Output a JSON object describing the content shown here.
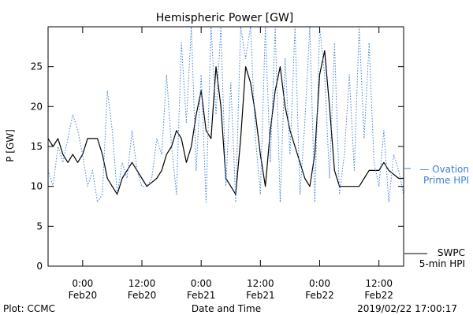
{
  "chart_data": {
    "type": "line",
    "title": "Hemispheric Power [GW]",
    "xlabel": "Date and Time",
    "ylabel": "P [GW]",
    "ylim": [
      0,
      30
    ],
    "yticks": [
      0,
      5,
      10,
      15,
      20,
      25
    ],
    "xlim": [
      "2019-02-19T17:00",
      "2019-02-22T17:00"
    ],
    "xticks": [
      {
        "time": "2019-02-20T00:00",
        "line1": "0:00",
        "line2": "Feb20"
      },
      {
        "time": "2019-02-20T12:00",
        "line1": "12:00",
        "line2": "Feb20"
      },
      {
        "time": "2019-02-21T00:00",
        "line1": "0:00",
        "line2": "Feb21"
      },
      {
        "time": "2019-02-21T12:00",
        "line1": "12:00",
        "line2": "Feb21"
      },
      {
        "time": "2019-02-22T00:00",
        "line1": "0:00",
        "line2": "Feb22"
      },
      {
        "time": "2019-02-22T12:00",
        "line1": "12:00",
        "line2": "Feb22"
      }
    ],
    "grid": false,
    "legend_position": "right",
    "footer": {
      "left": "Plot: CCMC",
      "right": "2019/02/22 17:00:17"
    },
    "series": [
      {
        "name": "SWPC 5-min HPI",
        "legend_lines": [
          "SWPC",
          "5-min HPI"
        ],
        "color": "#000000",
        "style": "solid",
        "points": [
          [
            "2019-02-19T17:00",
            16
          ],
          [
            "2019-02-19T18:00",
            15
          ],
          [
            "2019-02-19T19:00",
            16
          ],
          [
            "2019-02-19T20:00",
            14
          ],
          [
            "2019-02-19T21:00",
            13
          ],
          [
            "2019-02-19T22:00",
            14
          ],
          [
            "2019-02-19T23:00",
            13
          ],
          [
            "2019-02-20T00:00",
            14
          ],
          [
            "2019-02-20T01:00",
            16
          ],
          [
            "2019-02-20T03:00",
            16
          ],
          [
            "2019-02-20T04:00",
            14
          ],
          [
            "2019-02-20T05:00",
            11
          ],
          [
            "2019-02-20T06:00",
            10
          ],
          [
            "2019-02-20T07:00",
            9
          ],
          [
            "2019-02-20T08:00",
            11
          ],
          [
            "2019-02-20T09:00",
            12
          ],
          [
            "2019-02-20T10:00",
            13
          ],
          [
            "2019-02-20T11:00",
            12
          ],
          [
            "2019-02-20T12:00",
            11
          ],
          [
            "2019-02-20T13:00",
            10
          ],
          [
            "2019-02-20T15:00",
            11
          ],
          [
            "2019-02-20T16:00",
            12
          ],
          [
            "2019-02-20T17:00",
            14
          ],
          [
            "2019-02-20T18:00",
            15
          ],
          [
            "2019-02-20T19:00",
            17
          ],
          [
            "2019-02-20T20:00",
            16
          ],
          [
            "2019-02-20T21:00",
            13
          ],
          [
            "2019-02-20T22:00",
            15
          ],
          [
            "2019-02-20T23:00",
            19
          ],
          [
            "2019-02-21T00:00",
            22
          ],
          [
            "2019-02-21T01:00",
            17
          ],
          [
            "2019-02-21T02:00",
            16
          ],
          [
            "2019-02-21T03:00",
            25
          ],
          [
            "2019-02-21T04:00",
            20
          ],
          [
            "2019-02-21T05:00",
            11
          ],
          [
            "2019-02-21T06:00",
            10
          ],
          [
            "2019-02-21T07:00",
            9
          ],
          [
            "2019-02-21T08:00",
            16
          ],
          [
            "2019-02-21T09:00",
            25
          ],
          [
            "2019-02-21T10:00",
            23
          ],
          [
            "2019-02-21T11:00",
            19
          ],
          [
            "2019-02-21T12:00",
            14
          ],
          [
            "2019-02-21T13:00",
            10
          ],
          [
            "2019-02-21T14:00",
            17
          ],
          [
            "2019-02-21T15:00",
            22
          ],
          [
            "2019-02-21T16:00",
            25
          ],
          [
            "2019-02-21T17:00",
            20
          ],
          [
            "2019-02-21T18:00",
            17
          ],
          [
            "2019-02-21T19:00",
            15
          ],
          [
            "2019-02-21T20:00",
            13
          ],
          [
            "2019-02-21T21:00",
            11
          ],
          [
            "2019-02-21T22:00",
            10
          ],
          [
            "2019-02-21T23:00",
            14
          ],
          [
            "2019-02-22T00:00",
            24
          ],
          [
            "2019-02-22T01:00",
            27
          ],
          [
            "2019-02-22T02:00",
            20
          ],
          [
            "2019-02-22T03:00",
            12
          ],
          [
            "2019-02-22T04:00",
            10
          ],
          [
            "2019-02-22T08:00",
            10
          ],
          [
            "2019-02-22T09:00",
            11
          ],
          [
            "2019-02-22T10:00",
            12
          ],
          [
            "2019-02-22T12:00",
            12
          ],
          [
            "2019-02-22T13:00",
            13
          ],
          [
            "2019-02-22T14:00",
            12
          ],
          [
            "2019-02-22T16:00",
            11
          ],
          [
            "2019-02-22T17:00",
            11
          ]
        ]
      },
      {
        "name": "Ovation Prime HPI",
        "legend_lines": [
          "— Ovation",
          "Prime HPI"
        ],
        "color": "#3f7fd6",
        "style": "dotted",
        "points": [
          [
            "2019-02-19T17:00",
            12
          ],
          [
            "2019-02-19T18:00",
            10
          ],
          [
            "2019-02-19T19:00",
            15
          ],
          [
            "2019-02-19T20:00",
            13
          ],
          [
            "2019-02-19T21:00",
            16
          ],
          [
            "2019-02-19T22:00",
            19
          ],
          [
            "2019-02-19T23:00",
            17
          ],
          [
            "2019-02-20T00:00",
            14
          ],
          [
            "2019-02-20T01:00",
            10
          ],
          [
            "2019-02-20T02:00",
            12
          ],
          [
            "2019-02-20T03:00",
            8
          ],
          [
            "2019-02-20T04:00",
            9
          ],
          [
            "2019-02-20T05:00",
            22
          ],
          [
            "2019-02-20T06:00",
            17
          ],
          [
            "2019-02-20T07:00",
            9
          ],
          [
            "2019-02-20T08:00",
            13
          ],
          [
            "2019-02-20T09:00",
            11
          ],
          [
            "2019-02-20T10:00",
            17
          ],
          [
            "2019-02-20T11:00",
            12
          ],
          [
            "2019-02-20T12:00",
            10
          ],
          [
            "2019-02-20T13:00",
            10
          ],
          [
            "2019-02-20T14:00",
            11
          ],
          [
            "2019-02-20T15:00",
            16
          ],
          [
            "2019-02-20T16:00",
            14
          ],
          [
            "2019-02-20T17:00",
            24
          ],
          [
            "2019-02-20T18:00",
            15
          ],
          [
            "2019-02-20T19:00",
            9
          ],
          [
            "2019-02-20T20:00",
            28
          ],
          [
            "2019-02-20T21:00",
            18
          ],
          [
            "2019-02-20T22:00",
            30
          ],
          [
            "2019-02-20T23:00",
            12
          ],
          [
            "2019-02-21T00:00",
            24
          ],
          [
            "2019-02-21T01:00",
            8
          ],
          [
            "2019-02-21T02:00",
            30
          ],
          [
            "2019-02-21T03:00",
            19
          ],
          [
            "2019-02-21T04:00",
            30
          ],
          [
            "2019-02-21T05:00",
            10
          ],
          [
            "2019-02-21T06:00",
            23
          ],
          [
            "2019-02-21T07:00",
            8
          ],
          [
            "2019-02-21T08:00",
            30
          ],
          [
            "2019-02-21T09:00",
            26
          ],
          [
            "2019-02-21T10:00",
            30
          ],
          [
            "2019-02-21T11:00",
            16
          ],
          [
            "2019-02-21T12:00",
            9
          ],
          [
            "2019-02-21T13:00",
            30
          ],
          [
            "2019-02-21T14:00",
            13
          ],
          [
            "2019-02-21T15:00",
            30
          ],
          [
            "2019-02-21T16:00",
            8
          ],
          [
            "2019-02-21T17:00",
            26
          ],
          [
            "2019-02-21T18:00",
            14
          ],
          [
            "2019-02-21T19:00",
            30
          ],
          [
            "2019-02-21T20:00",
            9
          ],
          [
            "2019-02-21T21:00",
            18
          ],
          [
            "2019-02-21T22:00",
            30
          ],
          [
            "2019-02-21T23:00",
            8
          ],
          [
            "2019-02-22T00:00",
            30
          ],
          [
            "2019-02-22T01:00",
            24
          ],
          [
            "2019-02-22T02:00",
            11
          ],
          [
            "2019-02-22T03:00",
            28
          ],
          [
            "2019-02-22T04:00",
            9
          ],
          [
            "2019-02-22T05:00",
            14
          ],
          [
            "2019-02-22T06:00",
            24
          ],
          [
            "2019-02-22T07:00",
            12
          ],
          [
            "2019-02-22T08:00",
            30
          ],
          [
            "2019-02-22T09:00",
            16
          ],
          [
            "2019-02-22T10:00",
            28
          ],
          [
            "2019-02-22T11:00",
            13
          ],
          [
            "2019-02-22T12:00",
            10
          ],
          [
            "2019-02-22T13:00",
            17
          ],
          [
            "2019-02-22T14:00",
            8
          ],
          [
            "2019-02-22T15:00",
            14
          ],
          [
            "2019-02-22T16:00",
            12
          ],
          [
            "2019-02-22T17:00",
            9
          ]
        ]
      }
    ]
  }
}
